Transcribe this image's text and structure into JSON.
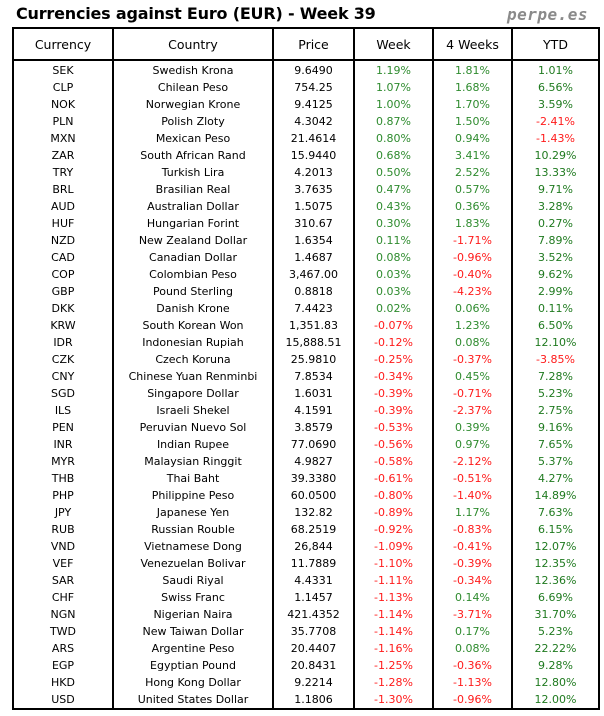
{
  "title": "Currencies against Euro (EUR) - Week 39",
  "brand": "perpe.es",
  "columns": [
    "Currency",
    "Country",
    "Price",
    "Week",
    "4 Weeks",
    "YTD"
  ],
  "rows": [
    [
      "SEK",
      "Swedish Krona",
      "9.6490",
      "1.19%",
      "1.81%",
      "1.01%"
    ],
    [
      "CLP",
      "Chilean Peso",
      "754.25",
      "1.07%",
      "1.68%",
      "6.56%"
    ],
    [
      "NOK",
      "Norwegian Krone",
      "9.4125",
      "1.00%",
      "1.70%",
      "3.59%"
    ],
    [
      "PLN",
      "Polish Zloty",
      "4.3042",
      "0.87%",
      "1.50%",
      "-2.41%"
    ],
    [
      "MXN",
      "Mexican Peso",
      "21.4614",
      "0.80%",
      "0.94%",
      "-1.43%"
    ],
    [
      "ZAR",
      "South African Rand",
      "15.9440",
      "0.68%",
      "3.41%",
      "10.29%"
    ],
    [
      "TRY",
      "Turkish Lira",
      "4.2013",
      "0.50%",
      "2.52%",
      "13.33%"
    ],
    [
      "BRL",
      "Brasilian Real",
      "3.7635",
      "0.47%",
      "0.57%",
      "9.71%"
    ],
    [
      "AUD",
      "Australian Dollar",
      "1.5075",
      "0.43%",
      "0.36%",
      "3.28%"
    ],
    [
      "HUF",
      "Hungarian Forint",
      "310.67",
      "0.30%",
      "1.83%",
      "0.27%"
    ],
    [
      "NZD",
      "New Zealand Dollar",
      "1.6354",
      "0.11%",
      "-1.71%",
      "7.89%"
    ],
    [
      "CAD",
      "Canadian Dollar",
      "1.4687",
      "0.08%",
      "-0.96%",
      "3.52%"
    ],
    [
      "COP",
      "Colombian Peso",
      "3,467.00",
      "0.03%",
      "-0.40%",
      "9.62%"
    ],
    [
      "GBP",
      "Pound Sterling",
      "0.8818",
      "0.03%",
      "-4.23%",
      "2.99%"
    ],
    [
      "DKK",
      "Danish Krone",
      "7.4423",
      "0.02%",
      "0.06%",
      "0.11%"
    ],
    [
      "KRW",
      "South Korean Won",
      "1,351.83",
      "-0.07%",
      "1.23%",
      "6.50%"
    ],
    [
      "IDR",
      "Indonesian Rupiah",
      "15,888.51",
      "-0.12%",
      "0.08%",
      "12.10%"
    ],
    [
      "CZK",
      "Czech Koruna",
      "25.9810",
      "-0.25%",
      "-0.37%",
      "-3.85%"
    ],
    [
      "CNY",
      "Chinese Yuan Renminbi",
      "7.8534",
      "-0.34%",
      "0.45%",
      "7.28%"
    ],
    [
      "SGD",
      "Singapore Dollar",
      "1.6031",
      "-0.39%",
      "-0.71%",
      "5.23%"
    ],
    [
      "ILS",
      "Israeli Shekel",
      "4.1591",
      "-0.39%",
      "-2.37%",
      "2.75%"
    ],
    [
      "PEN",
      "Peruvian Nuevo Sol",
      "3.8579",
      "-0.53%",
      "0.39%",
      "9.16%"
    ],
    [
      "INR",
      "Indian Rupee",
      "77.0690",
      "-0.56%",
      "0.97%",
      "7.65%"
    ],
    [
      "MYR",
      "Malaysian Ringgit",
      "4.9827",
      "-0.58%",
      "-2.12%",
      "5.37%"
    ],
    [
      "THB",
      "Thai Baht",
      "39.3380",
      "-0.61%",
      "-0.51%",
      "4.27%"
    ],
    [
      "PHP",
      "Philippine Peso",
      "60.0500",
      "-0.80%",
      "-1.40%",
      "14.89%"
    ],
    [
      "JPY",
      "Japanese Yen",
      "132.82",
      "-0.89%",
      "1.17%",
      "7.63%"
    ],
    [
      "RUB",
      "Russian Rouble",
      "68.2519",
      "-0.92%",
      "-0.83%",
      "6.15%"
    ],
    [
      "VND",
      "Vietnamese Dong",
      "26,844",
      "-1.09%",
      "-0.41%",
      "12.07%"
    ],
    [
      "VEF",
      "Venezuelan Bolivar",
      "11.7889",
      "-1.10%",
      "-0.39%",
      "12.35%"
    ],
    [
      "SAR",
      "Saudi Riyal",
      "4.4331",
      "-1.11%",
      "-0.34%",
      "12.36%"
    ],
    [
      "CHF",
      "Swiss Franc",
      "1.1457",
      "-1.13%",
      "0.14%",
      "6.69%"
    ],
    [
      "NGN",
      "Nigerian Naira",
      "421.4352",
      "-1.14%",
      "-3.71%",
      "31.70%"
    ],
    [
      "TWD",
      "New Taiwan Dollar",
      "35.7708",
      "-1.14%",
      "0.17%",
      "5.23%"
    ],
    [
      "ARS",
      "Argentine Peso",
      "20.4407",
      "-1.16%",
      "0.08%",
      "22.22%"
    ],
    [
      "EGP",
      "Egyptian Pound",
      "20.8431",
      "-1.25%",
      "-0.36%",
      "9.28%"
    ],
    [
      "HKD",
      "Hong Kong Dollar",
      "9.2214",
      "-1.28%",
      "-1.13%",
      "12.80%"
    ],
    [
      "USD",
      "United States Dollar",
      "1.1806",
      "-1.30%",
      "-0.96%",
      "12.00%"
    ]
  ],
  "colors": {
    "positive": "#2e8b2e",
    "negative": "#ff1a1a",
    "brand": "#8a8a8a"
  }
}
